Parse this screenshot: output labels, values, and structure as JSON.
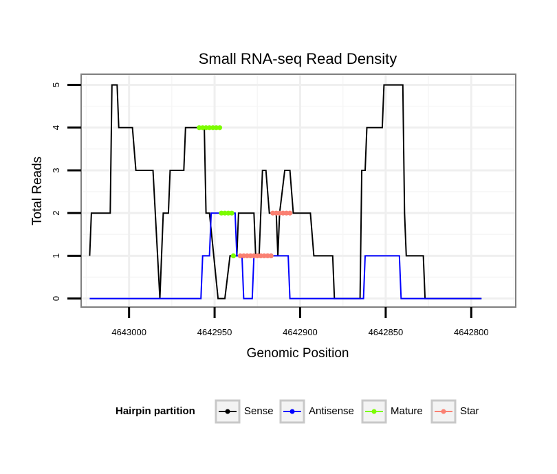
{
  "chart_data": {
    "type": "line",
    "title": "Small RNA-seq Read Density",
    "xlabel": "Genomic Position",
    "ylabel": "Total Reads",
    "xlim": [
      4643028,
      4642774
    ],
    "ylim": [
      -0.2,
      5.25
    ],
    "x_reversed": true,
    "grid": true,
    "x_ticks": [
      4643000,
      4642950,
      4642900,
      4642850,
      4642800
    ],
    "x_tick_labels": [
      "4643000",
      "4642950",
      "4642900",
      "4642850",
      "4642800"
    ],
    "y_ticks": [
      0,
      1,
      2,
      3,
      4,
      5
    ],
    "y_tick_labels": [
      "0",
      "1",
      "2",
      "3",
      "4",
      "5"
    ],
    "legend": {
      "title": "Hairpin partition",
      "position": "bottom",
      "entries": [
        "Sense",
        "Antisense",
        "Mature",
        "Star"
      ]
    },
    "series": [
      {
        "name": "Sense",
        "color": "#000000",
        "style": "line",
        "points": [
          [
            4643023,
            1
          ],
          [
            4643022,
            2
          ],
          [
            4643011,
            2
          ],
          [
            4643010,
            5
          ],
          [
            4643007,
            5
          ],
          [
            4643006,
            4
          ],
          [
            4642998,
            4
          ],
          [
            4642996,
            3
          ],
          [
            4642986,
            3
          ],
          [
            4642982,
            0
          ],
          [
            4642980,
            2
          ],
          [
            4642977,
            2
          ],
          [
            4642976,
            3
          ],
          [
            4642968,
            3
          ],
          [
            4642967,
            4
          ],
          [
            4642956,
            4
          ],
          [
            4642955,
            2
          ],
          [
            4642953,
            2
          ],
          [
            4642948,
            0
          ],
          [
            4642944,
            0
          ],
          [
            4642941,
            1
          ],
          [
            4642937,
            1
          ],
          [
            4642936,
            2
          ],
          [
            4642927,
            2
          ],
          [
            4642926,
            1
          ],
          [
            4642924,
            1
          ],
          [
            4642922,
            3
          ],
          [
            4642920,
            3
          ],
          [
            4642918,
            2
          ],
          [
            4642914,
            2
          ],
          [
            4642913,
            1
          ],
          [
            4642912,
            2
          ],
          [
            4642909,
            3
          ],
          [
            4642906,
            3
          ],
          [
            4642904,
            2
          ],
          [
            4642894,
            2
          ],
          [
            4642892,
            1
          ],
          [
            4642881,
            1
          ],
          [
            4642880,
            0
          ],
          [
            4642865,
            0
          ],
          [
            4642864,
            3
          ],
          [
            4642862,
            3
          ],
          [
            4642861,
            4
          ],
          [
            4642852,
            4
          ],
          [
            4642851,
            5
          ],
          [
            4642840,
            5
          ],
          [
            4642839,
            2
          ],
          [
            4642838,
            1
          ],
          [
            4642828,
            1
          ],
          [
            4642827,
            0
          ],
          [
            4642794,
            0
          ]
        ]
      },
      {
        "name": "Antisense",
        "color": "#0000ff",
        "style": "line",
        "points": [
          [
            4643023,
            0
          ],
          [
            4642958,
            0
          ],
          [
            4642957,
            1
          ],
          [
            4642953,
            1
          ],
          [
            4642952,
            2
          ],
          [
            4642938,
            2
          ],
          [
            4642937,
            1
          ],
          [
            4642934,
            1
          ],
          [
            4642933,
            0
          ],
          [
            4642928,
            0
          ],
          [
            4642927,
            1
          ],
          [
            4642907,
            1
          ],
          [
            4642906,
            0
          ],
          [
            4642863,
            0
          ],
          [
            4642862,
            1
          ],
          [
            4642842,
            1
          ],
          [
            4642841,
            0
          ],
          [
            4642794,
            0
          ]
        ]
      },
      {
        "name": "Mature",
        "color": "#7cfc00",
        "style": "dots",
        "points": [
          [
            4642959,
            4
          ],
          [
            4642957,
            4
          ],
          [
            4642955,
            4
          ],
          [
            4642953,
            4
          ],
          [
            4642951,
            4
          ],
          [
            4642949,
            4
          ],
          [
            4642947,
            4
          ],
          [
            4642946,
            2
          ],
          [
            4642944,
            2
          ],
          [
            4642942,
            2
          ],
          [
            4642940,
            2
          ],
          [
            4642939,
            1
          ]
        ]
      },
      {
        "name": "Star",
        "color": "#fa8072",
        "style": "dots",
        "points": [
          [
            4642935,
            1
          ],
          [
            4642933,
            1
          ],
          [
            4642931,
            1
          ],
          [
            4642929,
            1
          ],
          [
            4642927,
            1
          ],
          [
            4642925,
            1
          ],
          [
            4642923,
            1
          ],
          [
            4642921,
            1
          ],
          [
            4642919,
            1
          ],
          [
            4642917,
            1
          ],
          [
            4642916,
            2
          ],
          [
            4642914,
            2
          ],
          [
            4642912,
            2
          ],
          [
            4642910,
            2
          ],
          [
            4642908,
            2
          ],
          [
            4642906,
            2
          ]
        ]
      }
    ]
  }
}
